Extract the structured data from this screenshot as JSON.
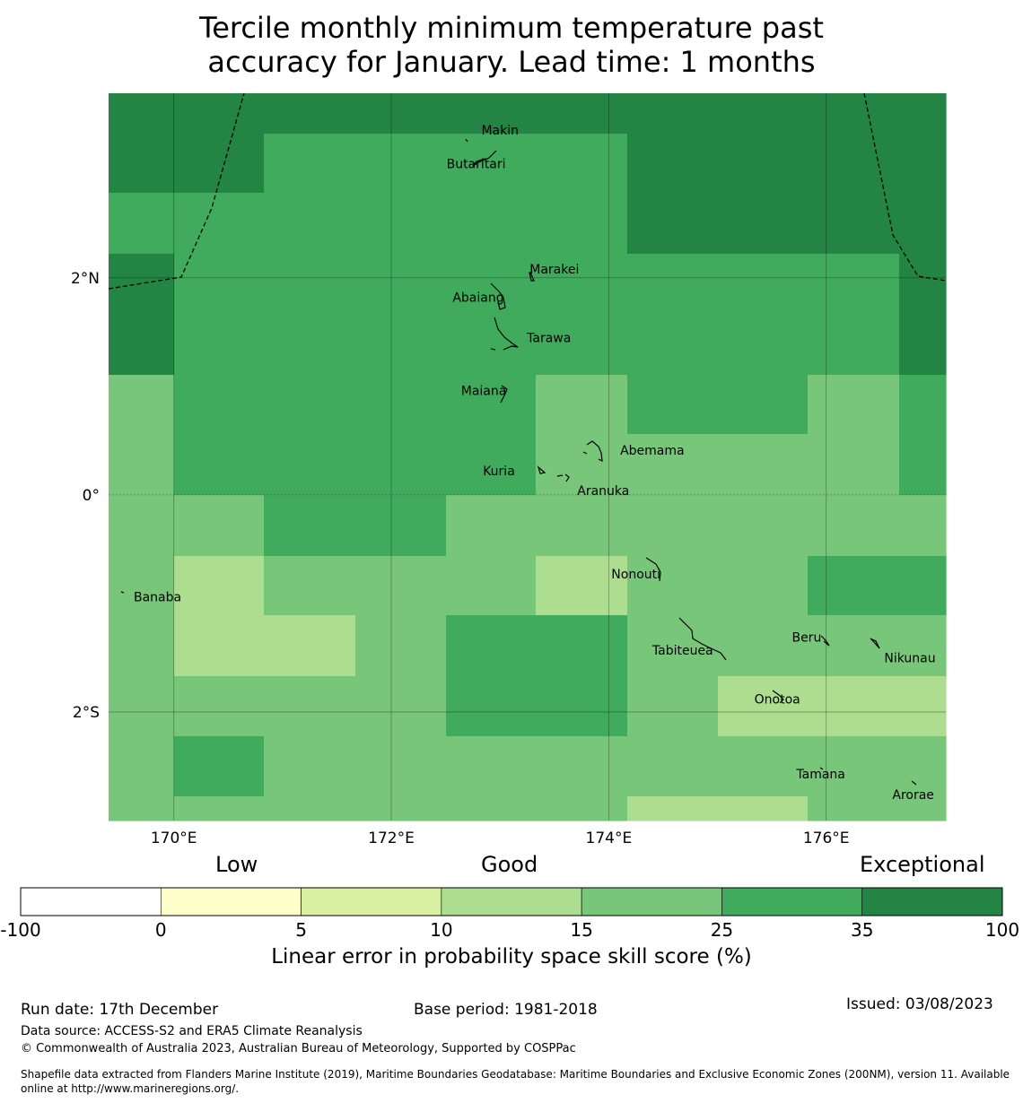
{
  "title": {
    "line1": "Tercile monthly minimum temperature past",
    "line2": "accuracy for January. Lead time: 1 months"
  },
  "map": {
    "lon_range": [
      169.4,
      177.1
    ],
    "lat_range": [
      -3.0,
      3.7
    ],
    "x_ticks": [
      {
        "value": 170,
        "label": "170°E"
      },
      {
        "value": 172,
        "label": "172°E"
      },
      {
        "value": 174,
        "label": "174°E"
      },
      {
        "value": 176,
        "label": "176°E"
      }
    ],
    "y_ticks": [
      {
        "value": 2,
        "label": "2°N"
      },
      {
        "value": 0,
        "label": "0°"
      },
      {
        "value": -2,
        "label": "2°S"
      }
    ],
    "grid_lon_edges": [
      169.4,
      170.0,
      170.83,
      171.67,
      172.5,
      173.33,
      174.17,
      175.0,
      175.83,
      176.67,
      177.1
    ],
    "grid_lat_edges": [
      3.7,
      3.33,
      2.78,
      2.22,
      1.11,
      0.56,
      0.0,
      -0.56,
      -1.11,
      -1.67,
      -2.22,
      -2.78,
      -3.0
    ],
    "skill_categories": [
      [
        100,
        100,
        100,
        100,
        100,
        100,
        100,
        100,
        100,
        100
      ],
      [
        100,
        100,
        35,
        35,
        35,
        35,
        100,
        100,
        100,
        100
      ],
      [
        35,
        35,
        35,
        35,
        35,
        35,
        100,
        100,
        100,
        100
      ],
      [
        100,
        35,
        35,
        35,
        35,
        35,
        35,
        35,
        35,
        100
      ],
      [
        25,
        35,
        35,
        35,
        35,
        25,
        35,
        35,
        25,
        35
      ],
      [
        25,
        35,
        35,
        35,
        35,
        25,
        25,
        25,
        25,
        35
      ],
      [
        25,
        25,
        35,
        35,
        25,
        25,
        25,
        25,
        25,
        25
      ],
      [
        25,
        15,
        25,
        25,
        25,
        15,
        25,
        25,
        35,
        35
      ],
      [
        25,
        15,
        15,
        25,
        35,
        35,
        25,
        25,
        25,
        25
      ],
      [
        25,
        25,
        25,
        25,
        35,
        35,
        25,
        15,
        15,
        15
      ],
      [
        25,
        35,
        25,
        25,
        25,
        25,
        25,
        25,
        25,
        25
      ],
      [
        25,
        25,
        25,
        25,
        25,
        25,
        15,
        15,
        25,
        25
      ]
    ],
    "places": [
      {
        "name": "Makin",
        "lon": 173.0,
        "lat": 3.36
      },
      {
        "name": "Butaritari",
        "lon": 172.78,
        "lat": 3.05
      },
      {
        "name": "Marakei",
        "lon": 173.5,
        "lat": 2.08
      },
      {
        "name": "Abaiang",
        "lon": 172.8,
        "lat": 1.82
      },
      {
        "name": "Tarawa",
        "lon": 173.45,
        "lat": 1.45
      },
      {
        "name": "Maiana",
        "lon": 172.85,
        "lat": 0.96
      },
      {
        "name": "Abemama",
        "lon": 174.4,
        "lat": 0.41
      },
      {
        "name": "Kuria",
        "lon": 172.99,
        "lat": 0.22
      },
      {
        "name": "Aranuka",
        "lon": 173.95,
        "lat": 0.04
      },
      {
        "name": "Nonouti",
        "lon": 174.25,
        "lat": -0.73
      },
      {
        "name": "Banaba",
        "lon": 169.85,
        "lat": -0.94
      },
      {
        "name": "Tabiteuea",
        "lon": 174.68,
        "lat": -1.43
      },
      {
        "name": "Beru",
        "lon": 175.82,
        "lat": -1.31
      },
      {
        "name": "Nikunau",
        "lon": 176.77,
        "lat": -1.5
      },
      {
        "name": "Onotoa",
        "lon": 175.55,
        "lat": -1.88
      },
      {
        "name": "Tamana",
        "lon": 175.95,
        "lat": -2.57
      },
      {
        "name": "Arorae",
        "lon": 176.8,
        "lat": -2.76
      }
    ]
  },
  "colorbar": {
    "words": {
      "low": "Low",
      "good": "Good",
      "exceptional": "Exceptional"
    },
    "tick_labels": [
      "-100",
      "0",
      "5",
      "10",
      "15",
      "25",
      "35",
      "100"
    ],
    "colors": [
      "#ffffff",
      "#ffffcc",
      "#d9f0a3",
      "#addd8e",
      "#78c679",
      "#41ab5d",
      "#238443"
    ],
    "category_upper_bounds": [
      0,
      5,
      10,
      15,
      25,
      35,
      100
    ],
    "title": "Linear error in probability space skill score (%)"
  },
  "footer": {
    "run_date": "Run date: 17th December",
    "base_period": "Base period: 1981-2018",
    "issued": "Issued: 03/08/2023",
    "data_source": "Data source: ACCESS-S2 and ERA5 Climate Reanalysis",
    "copyright": "© Commonwealth of Australia 2023, Australian Bureau of Meteorology, Supported by COSPPac",
    "shapefile_line1": "Shapefile data extracted from Flanders Marine Institute (2019), Maritime Boundaries Geodatabase: Maritime Boundaries and Exclusive Economic Zones (200NM), version 11. Available",
    "shapefile_line2": "online at http://www.marineregions.org/."
  }
}
